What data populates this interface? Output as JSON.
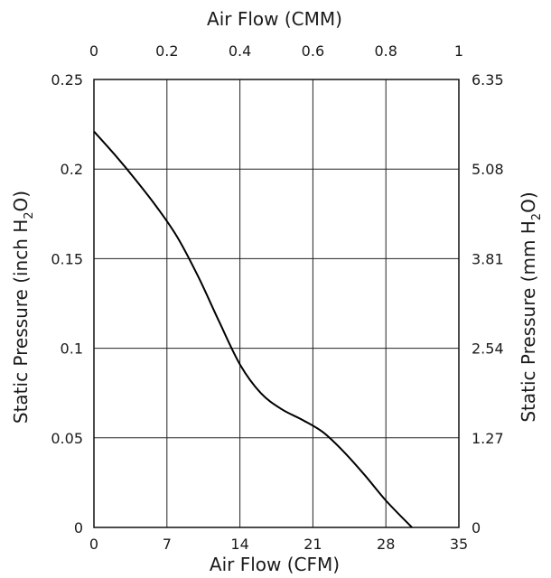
{
  "chart_data": {
    "type": "line",
    "title": "",
    "xlabel": "Air Flow (CFM)",
    "x2label": "Air Flow (CMM)",
    "ylabel": {
      "prefix": "Static Pressure (inch H",
      "sub": "2",
      "suffix": "O)"
    },
    "y2label": {
      "prefix": "Static Pressure (mm H",
      "sub": "2",
      "suffix": "O)"
    },
    "xlim": [
      0,
      35
    ],
    "ylim": [
      0,
      0.25
    ],
    "x2lim": [
      0,
      1
    ],
    "y2lim": [
      0,
      6.35
    ],
    "x_ticks": [
      "0",
      "7",
      "14",
      "21",
      "28",
      "35"
    ],
    "x2_ticks": [
      "0",
      "0.2",
      "0.4",
      "0.6",
      "0.8",
      "1"
    ],
    "y_ticks": [
      "0",
      "0.05",
      "0.1",
      "0.15",
      "0.2",
      "0.25"
    ],
    "y2_ticks": [
      "0",
      "1.27",
      "2.54",
      "3.81",
      "5.08",
      "6.35"
    ],
    "grid": true,
    "series": [
      {
        "x": [
          0,
          2,
          4,
          6,
          8,
          10,
          12,
          14,
          16,
          18,
          20,
          22,
          24,
          26,
          28,
          30.5
        ],
        "y": [
          0.221,
          0.208,
          0.194,
          0.179,
          0.162,
          0.14,
          0.115,
          0.091,
          0.075,
          0.066,
          0.06,
          0.053,
          0.042,
          0.029,
          0.015,
          0.0
        ]
      }
    ]
  }
}
